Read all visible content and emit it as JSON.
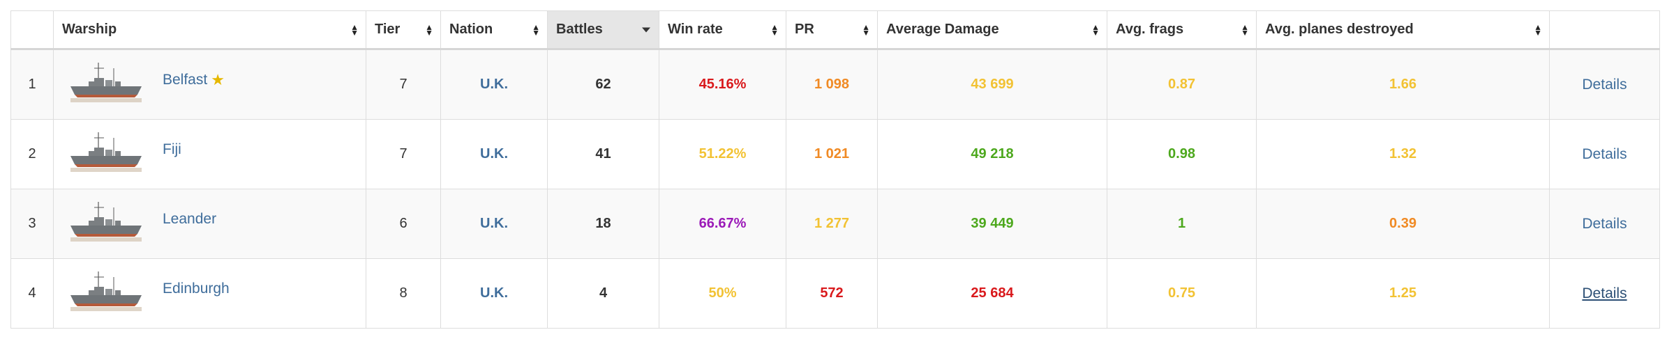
{
  "headers": [
    {
      "label": ""
    },
    {
      "label": "Warship"
    },
    {
      "label": "Tier"
    },
    {
      "label": "Nation"
    },
    {
      "label": "Battles"
    },
    {
      "label": "Win rate"
    },
    {
      "label": "PR"
    },
    {
      "label": "Average Damage"
    },
    {
      "label": "Avg. frags"
    },
    {
      "label": "Avg. planes destroyed"
    },
    {
      "label": ""
    }
  ],
  "colors": {
    "link": "#3f6d9b",
    "red": "#d9191c",
    "orange": "#f08a24",
    "yellow": "#f2c233",
    "green": "#4da81d",
    "purple": "#9b1ab8",
    "dark": "#222222"
  },
  "rows": [
    {
      "index": "1",
      "ship": "Belfast",
      "starred": true,
      "tier": "7",
      "nation": "U.K.",
      "battles": "62",
      "winrate": "45.16%",
      "winrate_color": "#d9191c",
      "pr": "1 098",
      "pr_color": "#f08a24",
      "damage": "43 699",
      "damage_color": "#f2c233",
      "frags": "0.87",
      "frags_color": "#f2c233",
      "planes": "1.66",
      "planes_color": "#f2c233",
      "details": "Details"
    },
    {
      "index": "2",
      "ship": "Fiji",
      "starred": false,
      "tier": "7",
      "nation": "U.K.",
      "battles": "41",
      "winrate": "51.22%",
      "winrate_color": "#f2c233",
      "pr": "1 021",
      "pr_color": "#f08a24",
      "damage": "49 218",
      "damage_color": "#4da81d",
      "frags": "0.98",
      "frags_color": "#4da81d",
      "planes": "1.32",
      "planes_color": "#f2c233",
      "details": "Details"
    },
    {
      "index": "3",
      "ship": "Leander",
      "starred": false,
      "tier": "6",
      "nation": "U.K.",
      "battles": "18",
      "winrate": "66.67%",
      "winrate_color": "#9b1ab8",
      "pr": "1 277",
      "pr_color": "#f2c233",
      "damage": "39 449",
      "damage_color": "#4da81d",
      "frags": "1",
      "frags_color": "#4da81d",
      "planes": "0.39",
      "planes_color": "#f08a24",
      "details": "Details"
    },
    {
      "index": "4",
      "ship": "Edinburgh",
      "starred": false,
      "tier": "8",
      "nation": "U.K.",
      "battles": "4",
      "winrate": "50%",
      "winrate_color": "#f2c233",
      "pr": "572",
      "pr_color": "#d9191c",
      "damage": "25 684",
      "damage_color": "#d9191c",
      "frags": "0.75",
      "frags_color": "#f2c233",
      "planes": "1.25",
      "planes_color": "#f2c233",
      "details": "Details"
    }
  ]
}
